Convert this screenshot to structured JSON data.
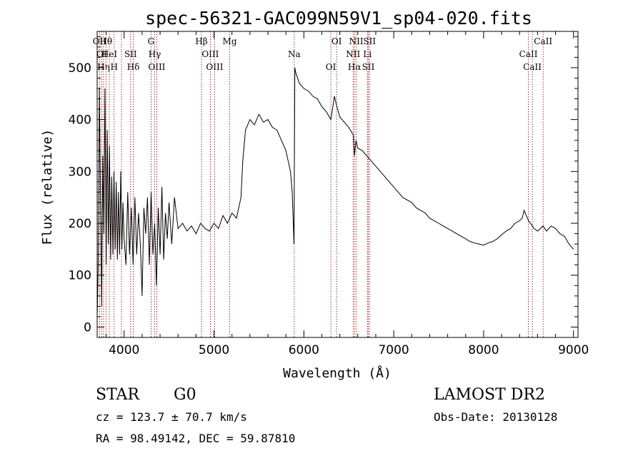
{
  "chart_data": {
    "type": "line",
    "title": "spec-56321-GAC099N59V1_sp04-020.fits",
    "xlabel": "Wavelength (Å)",
    "ylabel": "Flux (relative)",
    "xlim": [
      3700,
      9050
    ],
    "ylim": [
      -20,
      570
    ],
    "x_ticks": [
      4000,
      5000,
      6000,
      7000,
      8000,
      9000
    ],
    "x_tick_labels": [
      "4000",
      "5000",
      "6000",
      "7000",
      "8000",
      "9000"
    ],
    "y_ticks": [
      0,
      100,
      200,
      300,
      400,
      500
    ],
    "y_tick_labels": [
      "0",
      "100",
      "200",
      "300",
      "400",
      "500"
    ],
    "series": [
      {
        "color": "#000000",
        "x": [
          3700,
          3712,
          3725,
          3737,
          3750,
          3762,
          3775,
          3787,
          3800,
          3812,
          3825,
          3837,
          3850,
          3862,
          3875,
          3887,
          3900,
          3912,
          3925,
          3937,
          3950,
          3962,
          3975,
          3987,
          4000,
          4020,
          4040,
          4060,
          4080,
          4100,
          4120,
          4140,
          4160,
          4180,
          4200,
          4220,
          4240,
          4260,
          4280,
          4300,
          4320,
          4340,
          4360,
          4380,
          4400,
          4420,
          4440,
          4460,
          4480,
          4500,
          4530,
          4560,
          4600,
          4650,
          4700,
          4750,
          4800,
          4850,
          4900,
          4950,
          5000,
          5050,
          5100,
          5150,
          5200,
          5250,
          5300,
          5320,
          5350,
          5400,
          5450,
          5500,
          5550,
          5600,
          5650,
          5700,
          5750,
          5800,
          5850,
          5870,
          5890,
          5900,
          5910,
          5930,
          5950,
          6000,
          6050,
          6100,
          6150,
          6200,
          6250,
          6300,
          6340,
          6360,
          6400,
          6450,
          6500,
          6550,
          6563,
          6580,
          6600,
          6650,
          6700,
          6750,
          6800,
          6850,
          6900,
          6950,
          7000,
          7050,
          7100,
          7150,
          7200,
          7250,
          7300,
          7350,
          7400,
          7450,
          7500,
          7550,
          7600,
          7650,
          7700,
          7750,
          7800,
          7850,
          7900,
          7950,
          8000,
          8050,
          8100,
          8150,
          8200,
          8250,
          8300,
          8350,
          8400,
          8430,
          8450,
          8500,
          8542,
          8560,
          8600,
          8662,
          8680,
          8700,
          8750,
          8800,
          8850,
          8900,
          8950,
          9000
        ],
        "y": [
          20,
          120,
          460,
          250,
          40,
          330,
          180,
          460,
          120,
          380,
          160,
          350,
          130,
          290,
          140,
          300,
          150,
          280,
          130,
          260,
          140,
          300,
          150,
          240,
          170,
          120,
          260,
          140,
          230,
          120,
          250,
          140,
          220,
          160,
          60,
          230,
          180,
          250,
          120,
          260,
          140,
          200,
          80,
          230,
          140,
          270,
          130,
          220,
          170,
          240,
          160,
          250,
          190,
          200,
          185,
          195,
          180,
          200,
          190,
          185,
          200,
          190,
          215,
          200,
          220,
          210,
          250,
          320,
          380,
          400,
          390,
          410,
          395,
          400,
          385,
          380,
          360,
          340,
          300,
          260,
          160,
          500,
          490,
          480,
          470,
          460,
          455,
          445,
          440,
          425,
          415,
          400,
          445,
          430,
          405,
          395,
          385,
          370,
          330,
          360,
          345,
          340,
          330,
          320,
          310,
          300,
          290,
          280,
          270,
          260,
          250,
          245,
          240,
          230,
          225,
          220,
          210,
          205,
          200,
          195,
          190,
          185,
          180,
          175,
          170,
          165,
          162,
          160,
          158,
          162,
          165,
          170,
          178,
          185,
          190,
          200,
          205,
          210,
          225,
          205,
          195,
          190,
          185,
          195,
          190,
          185,
          195,
          190,
          180,
          175,
          160,
          150
        ]
      }
    ],
    "line_markers": [
      {
        "wavelength": 3727,
        "labels": [
          "OII"
        ]
      },
      {
        "wavelength": 3750,
        "labels": [
          "OI"
        ]
      },
      {
        "wavelength": 3771,
        "labels": [
          "Hη"
        ]
      },
      {
        "wavelength": 3798,
        "labels": [
          "Hθ"
        ]
      },
      {
        "wavelength": 3835,
        "labels": [
          "HeI"
        ]
      },
      {
        "wavelength": 3889,
        "labels": [
          "H"
        ]
      },
      {
        "wavelength": 3970,
        "labels": []
      },
      {
        "wavelength": 4072,
        "labels": [
          "SII"
        ]
      },
      {
        "wavelength": 4102,
        "labels": [
          "Hδ"
        ]
      },
      {
        "wavelength": 4300,
        "labels": [
          "G"
        ]
      },
      {
        "wavelength": 4340,
        "labels": [
          "Hγ"
        ]
      },
      {
        "wavelength": 4363,
        "labels": [
          "OIII"
        ]
      },
      {
        "wavelength": 4861,
        "labels": [
          "Hβ"
        ]
      },
      {
        "wavelength": 4959,
        "labels": [
          "OIII"
        ]
      },
      {
        "wavelength": 5007,
        "labels": [
          "OIII"
        ]
      },
      {
        "wavelength": 5175,
        "labels": [
          "Mg"
        ]
      },
      {
        "wavelength": 5893,
        "labels": [
          "Na"
        ]
      },
      {
        "wavelength": 6300,
        "labels": [
          "OI"
        ]
      },
      {
        "wavelength": 6364,
        "labels": [
          "OI"
        ]
      },
      {
        "wavelength": 6548,
        "labels": [
          "NII"
        ]
      },
      {
        "wavelength": 6563,
        "labels": [
          "Hα"
        ]
      },
      {
        "wavelength": 6583,
        "labels": [
          "NII"
        ]
      },
      {
        "wavelength": 6707,
        "labels": [
          "Li"
        ]
      },
      {
        "wavelength": 6717,
        "labels": [
          "SII"
        ]
      },
      {
        "wavelength": 6731,
        "labels": [
          "SII"
        ]
      },
      {
        "wavelength": 8498,
        "labels": [
          "CaII"
        ]
      },
      {
        "wavelength": 8542,
        "labels": [
          "CaII"
        ]
      },
      {
        "wavelength": 8662,
        "labels": [
          "CaII"
        ]
      }
    ],
    "grid": false,
    "marker_color": "#8b0000"
  },
  "footer": {
    "object_class": "STAR",
    "subclass": "G0",
    "survey": "LAMOST DR2",
    "redshift": "cz = 123.7 ± 70.7 km/s",
    "obs_date": "Obs-Date: 20130128",
    "coords": "RA =  98.49142, DEC =  59.87810"
  }
}
